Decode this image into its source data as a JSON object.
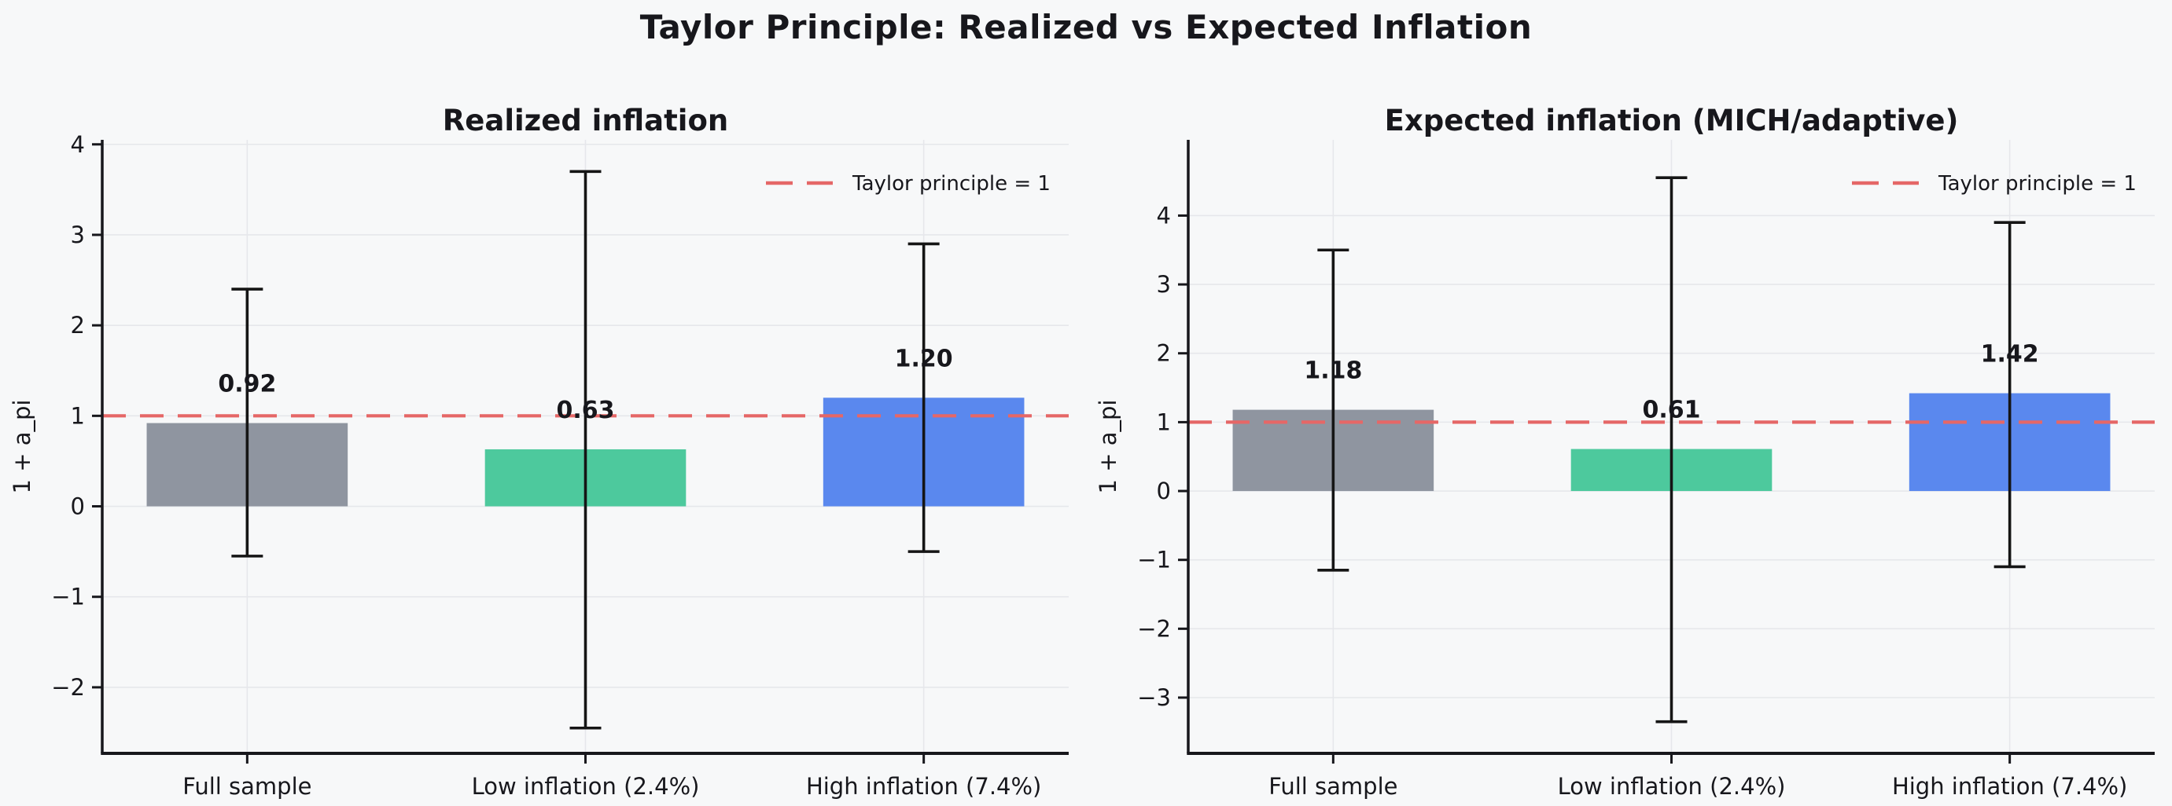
{
  "figure": {
    "title": "Taylor Principle: Realized vs Expected Inflation",
    "background_color": "#f7f8f9",
    "text_color": "#17171c",
    "grid_color": "#e6e7eb"
  },
  "chart_data": [
    {
      "type": "bar",
      "title": "Realized inflation",
      "ylabel": "1 + a_pi",
      "categories": [
        "Full sample",
        "Low inflation (2.4%)",
        "High inflation (7.4%)"
      ],
      "values": [
        0.92,
        0.63,
        1.2
      ],
      "value_labels": [
        "0.92",
        "0.63",
        "1.20"
      ],
      "error_low": [
        -0.55,
        -2.45,
        -0.5
      ],
      "error_high": [
        2.4,
        3.7,
        2.9
      ],
      "bar_colors": [
        "#8f95a0",
        "#4dc99d",
        "#5a88ee"
      ],
      "error_color": "#151515",
      "ylim": [
        -2.73,
        4.05
      ],
      "yticks": [
        -2,
        -1,
        0,
        1,
        2,
        3,
        4
      ],
      "grid": true,
      "legend_position": "upper right",
      "reference_line": {
        "y": 1,
        "label": "Taylor principle = 1",
        "color": "#e56767",
        "style": "dashed"
      }
    },
    {
      "type": "bar",
      "title": "Expected inflation (MICH/adaptive)",
      "ylabel": "1 + a_pi",
      "categories": [
        "Full sample",
        "Low inflation (2.4%)",
        "High inflation (7.4%)"
      ],
      "values": [
        1.18,
        0.61,
        1.42
      ],
      "value_labels": [
        "1.18",
        "0.61",
        "1.42"
      ],
      "error_low": [
        -1.15,
        -3.35,
        -1.1
      ],
      "error_high": [
        3.5,
        4.55,
        3.9
      ],
      "bar_colors": [
        "#8f95a0",
        "#4dc99d",
        "#5a88ee"
      ],
      "error_color": "#151515",
      "ylim": [
        -3.81,
        5.1
      ],
      "yticks": [
        -3,
        -2,
        -1,
        0,
        1,
        2,
        3,
        4
      ],
      "grid": true,
      "legend_position": "upper right",
      "reference_line": {
        "y": 1,
        "label": "Taylor principle = 1",
        "color": "#e56767",
        "style": "dashed"
      }
    }
  ]
}
